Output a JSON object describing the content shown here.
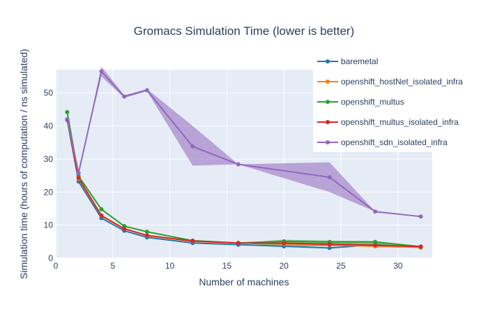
{
  "chart_data": {
    "type": "line",
    "title": "Gromacs Simulation Time (lower is better)",
    "xlabel": "Number of machines",
    "ylabel": "Simulation time (hours of computation / ns simulated)",
    "xlim": [
      0,
      33
    ],
    "ylim": [
      0,
      57
    ],
    "xticks": [
      0,
      5,
      10,
      15,
      20,
      25,
      30
    ],
    "yticks": [
      0,
      10,
      20,
      30,
      40,
      50
    ],
    "grid": true,
    "legend_position": "top-right",
    "background_color": "#e5ecf6",
    "series": [
      {
        "name": "baremetal",
        "color": "#1f77b4",
        "x": [
          1,
          2,
          4,
          6,
          8,
          12,
          16,
          20,
          24,
          28,
          32
        ],
        "y": [
          41.8,
          23.2,
          12.1,
          8.3,
          6.3,
          4.6,
          4.1,
          3.6,
          3.1,
          4.1,
          3.2
        ],
        "band_low": [
          41.8,
          23.2,
          12.1,
          8.3,
          6.3,
          4.6,
          4.1,
          3.6,
          3.1,
          4.1,
          3.2
        ],
        "band_high": [
          41.8,
          23.2,
          12.1,
          8.3,
          6.3,
          4.6,
          4.1,
          3.6,
          3.1,
          4.1,
          3.2
        ]
      },
      {
        "name": "openshift_hostNet_isolated_infra",
        "color": "#ff7f0e",
        "x": [
          1,
          2,
          4,
          6,
          8,
          12,
          16,
          20,
          24,
          28,
          32
        ],
        "y": [
          42.0,
          24.0,
          12.8,
          8.9,
          6.8,
          5.1,
          4.6,
          4.3,
          4.0,
          3.6,
          3.3
        ],
        "band_low": [
          42.0,
          24.0,
          12.8,
          8.9,
          6.8,
          5.1,
          4.6,
          4.3,
          4.0,
          3.4,
          3.3
        ],
        "band_high": [
          42.0,
          24.0,
          12.8,
          8.9,
          6.8,
          5.1,
          4.6,
          4.3,
          4.0,
          3.8,
          3.3
        ]
      },
      {
        "name": "openshift_multus",
        "color": "#2ca02c",
        "x": [
          1,
          2,
          4,
          6,
          8,
          12,
          16,
          20,
          24,
          28,
          32
        ],
        "y": [
          44.2,
          24.8,
          14.8,
          9.7,
          8.0,
          5.3,
          4.6,
          5.1,
          4.9,
          4.9,
          3.5
        ],
        "band_low": [
          44.2,
          24.8,
          14.8,
          9.7,
          8.0,
          5.3,
          4.6,
          3.6,
          3.6,
          3.8,
          3.5
        ],
        "band_high": [
          44.2,
          24.8,
          14.8,
          9.7,
          8.0,
          5.3,
          4.6,
          5.6,
          5.3,
          5.2,
          3.5
        ]
      },
      {
        "name": "openshift_multus_isolated_infra",
        "color": "#d62728",
        "x": [
          1,
          2,
          4,
          6,
          8,
          12,
          16,
          20,
          24,
          28,
          32
        ],
        "y": [
          42.0,
          24.3,
          12.9,
          8.9,
          6.9,
          5.2,
          4.6,
          4.5,
          4.2,
          3.9,
          3.5
        ],
        "band_low": [
          42.0,
          24.3,
          12.9,
          8.9,
          6.9,
          5.2,
          4.6,
          4.2,
          3.8,
          3.6,
          3.5
        ],
        "band_high": [
          42.0,
          24.3,
          12.9,
          8.9,
          6.9,
          5.2,
          4.6,
          4.8,
          4.5,
          4.2,
          3.5
        ]
      },
      {
        "name": "openshift_sdn_isolated_infra",
        "color": "#9467bd",
        "x": [
          1,
          2,
          4,
          6,
          8,
          12,
          16,
          20,
          24,
          28,
          32
        ],
        "y": [
          42.0,
          25.8,
          56.5,
          48.9,
          50.8,
          33.8,
          28.4,
          null,
          24.5,
          14.1,
          12.6
        ],
        "band_low": [
          42.0,
          25.8,
          55.0,
          48.5,
          50.5,
          28.0,
          28.4,
          null,
          20.0,
          14.1,
          12.6
        ],
        "band_high": [
          42.0,
          25.8,
          58.0,
          49.3,
          51.2,
          40.0,
          28.4,
          null,
          29.0,
          14.1,
          12.6
        ]
      }
    ]
  }
}
